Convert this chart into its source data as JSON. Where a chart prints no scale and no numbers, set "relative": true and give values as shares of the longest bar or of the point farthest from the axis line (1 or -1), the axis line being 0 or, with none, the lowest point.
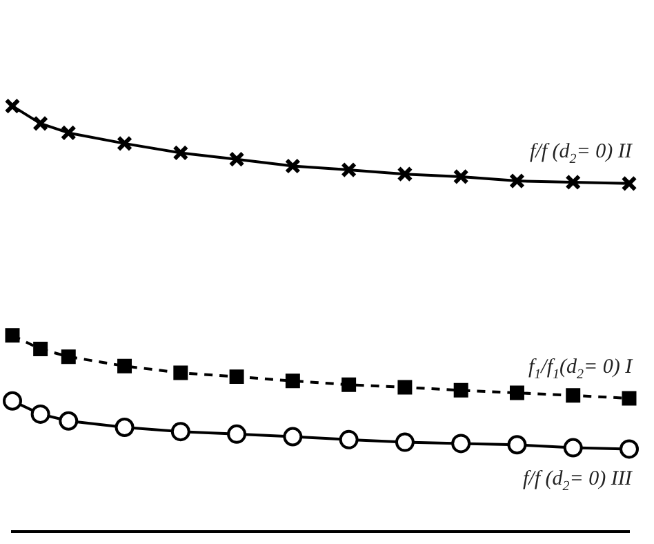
{
  "chart_data": {
    "type": "line",
    "relative": true,
    "tick_labels": false,
    "grid": false,
    "legend": false,
    "categories": [
      null,
      null,
      null,
      null,
      null,
      null,
      null,
      null,
      null,
      null,
      null,
      null,
      null,
      null,
      null,
      null,
      null,
      null,
      null,
      null,
      null,
      null,
      null
    ],
    "series": [
      {
        "name": "f/f (d$_{2}$= 0) II",
        "color": "#000000",
        "marker": "cross",
        "line_style": "solid",
        "values": [
          1,
          0.959,
          0.937,
          null,
          0.912,
          null,
          0.89,
          null,
          0.875,
          null,
          0.859,
          null,
          0.85,
          null,
          0.84,
          null,
          0.834,
          null,
          0.824,
          null,
          0.821,
          null,
          0.818
        ]
      },
      {
        "name": "f$_{1}$/f$_{1}$(d$_{2}$= 0) I",
        "color": "#000000",
        "marker": "square",
        "line_style": "dashed",
        "values": [
          0.461,
          0.429,
          0.411,
          null,
          0.389,
          null,
          0.373,
          null,
          0.364,
          null,
          0.354,
          null,
          0.345,
          null,
          0.339,
          null,
          0.332,
          null,
          0.326,
          null,
          0.32,
          null,
          0.313
        ]
      },
      {
        "name": "f/f (d$_{2}$= 0) III",
        "color": "#000000",
        "marker": "circle",
        "line_style": "solid",
        "values": [
          0.307,
          0.276,
          0.26,
          null,
          0.245,
          null,
          0.235,
          null,
          0.229,
          null,
          0.223,
          null,
          0.216,
          null,
          0.21,
          null,
          0.207,
          null,
          0.204,
          null,
          0.197,
          null,
          0.194
        ]
      }
    ]
  }
}
